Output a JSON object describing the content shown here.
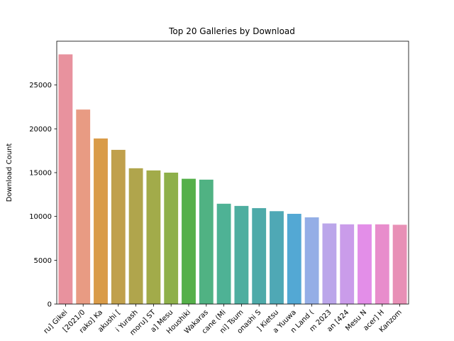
{
  "chart_data": {
    "type": "bar",
    "title": "Top 20 Galleries by Download",
    "xlabel": "",
    "ylabel": "Download Count",
    "ylim": [
      0,
      30000
    ],
    "yticks": [
      0,
      5000,
      10000,
      15000,
      20000,
      25000
    ],
    "grid": false,
    "categories": [
      "ru] Gikei",
      "[2021/0",
      "rako] Ka",
      "akushi [",
      "i Yurash",
      "moru] ST",
      "a] Mesu",
      "Houshiki",
      "Wakaras",
      "cane (Mi",
      "ni] Tsum",
      "onashi S",
      "] Kietsu",
      "a Yuuwa",
      "n Land (",
      "m 2023",
      "an [424",
      "Mesu N",
      "acer] H",
      "Kanzom"
    ],
    "values": [
      28500,
      22200,
      18900,
      17600,
      15500,
      15250,
      15000,
      14300,
      14200,
      11450,
      11200,
      10950,
      10600,
      10300,
      9900,
      9200,
      9100,
      9100,
      9100,
      9050
    ],
    "colors": [
      "#e8929e",
      "#e89b83",
      "#d99b48",
      "#c0a04c",
      "#b0a54c",
      "#a2ab4a",
      "#8eb04a",
      "#55b04a",
      "#50b283",
      "#4eb295",
      "#4eaea0",
      "#4eaaa9",
      "#4fa8b5",
      "#53a8d4",
      "#94aee6",
      "#bba6ea",
      "#ca9cea",
      "#e38ee8",
      "#e88dcc",
      "#e890b6"
    ]
  }
}
